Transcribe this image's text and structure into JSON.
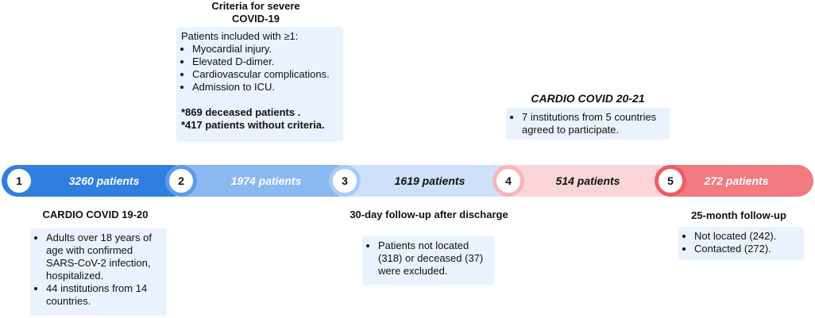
{
  "stages": [
    {
      "number": "1",
      "patients": "3260 patients",
      "color": "#2f7fe0"
    },
    {
      "number": "2",
      "patients": "1974 patients",
      "color": "#8ab8f1"
    },
    {
      "number": "3",
      "patients": "1619 patients",
      "color": "#cfe1fa"
    },
    {
      "number": "4",
      "patients": "514 patients",
      "color": "#fbd6d8"
    },
    {
      "number": "5",
      "patients": "272 patients",
      "color": "#f27a80"
    }
  ],
  "stage1": {
    "heading": "CARDIO COVID 19-20",
    "bullets": [
      "Adults over 18 years of age with confirmed SARS-CoV-2 infection, hospitalized.",
      "44 institutions from 14 countries."
    ]
  },
  "stage2": {
    "heading": "Criteria for severe COVID-19",
    "lead": "Patients included with ≥1:",
    "bullets": [
      "Myocardial injury.",
      "Elevated D-dimer.",
      "Cardiovascular complications.",
      "Admission to ICU."
    ],
    "notes": [
      "*869 deceased patients .",
      "*417 patients without criteria."
    ]
  },
  "stage3": {
    "heading": "30-day follow-up after discharge",
    "bullets": [
      "Patients not located (318) or deceased (37) were excluded."
    ]
  },
  "stage4": {
    "heading": "CARDIO COVID 20-21",
    "bullets": [
      "7 institutions from 5 countries agreed to participate."
    ]
  },
  "stage5": {
    "heading": "25-month follow-up",
    "bullets": [
      "Not located (242).",
      "Contacted (272)."
    ]
  }
}
